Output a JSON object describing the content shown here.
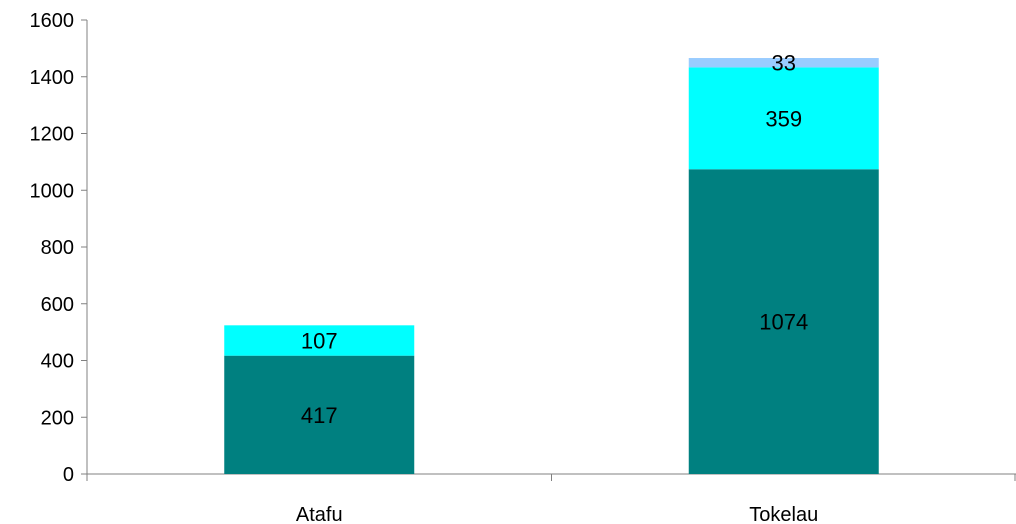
{
  "chart_data": {
    "type": "bar",
    "stacked": true,
    "categories": [
      "Atafu",
      "Tokelau"
    ],
    "series": [
      {
        "values": [
          417,
          1074
        ],
        "color": "#008080"
      },
      {
        "values": [
          107,
          359
        ],
        "color": "#00FFFF"
      },
      {
        "values": [
          null,
          33
        ],
        "color": "#99CCFF"
      }
    ],
    "ylim": [
      0,
      1600
    ],
    "yticks": [
      0,
      200,
      400,
      600,
      800,
      1000,
      1200,
      1400,
      1600
    ],
    "grid": false,
    "legend": "none"
  }
}
